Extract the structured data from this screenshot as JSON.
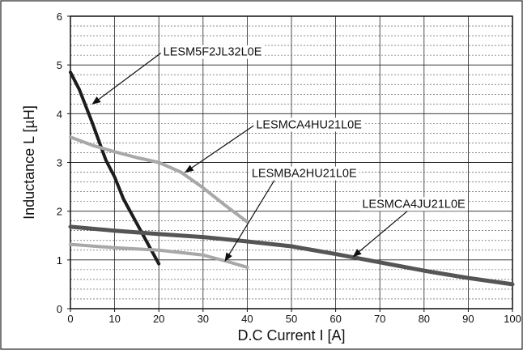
{
  "chart_data": {
    "type": "line",
    "title": "",
    "xlabel": "D.C Current I [A]",
    "ylabel": "Inductance L  [µH]",
    "xlim": [
      0,
      100
    ],
    "ylim": [
      0,
      6
    ],
    "xticks": [
      "0",
      "10",
      "20",
      "30",
      "40",
      "50",
      "60",
      "70",
      "80",
      "90",
      "100"
    ],
    "yticks": [
      "0",
      "1",
      "2",
      "3",
      "4",
      "5",
      "6"
    ],
    "grid": true,
    "series": [
      {
        "name": "LESM5F2JL32L0E",
        "color": "#1c1c1c",
        "x": [
          0,
          2,
          5,
          8,
          10,
          12,
          15,
          18,
          20
        ],
        "y": [
          4.85,
          4.5,
          3.8,
          3.05,
          2.7,
          2.25,
          1.75,
          1.25,
          0.92
        ]
      },
      {
        "name": "LESMCA4HU21L0E",
        "color": "#a8a8a8",
        "x": [
          0,
          5,
          10,
          15,
          20,
          25,
          30,
          35,
          40
        ],
        "y": [
          3.52,
          3.35,
          3.22,
          3.1,
          3.0,
          2.8,
          2.48,
          2.12,
          1.78
        ]
      },
      {
        "name": "LESMBA2HU21L0E",
        "color": "#a8a8a8",
        "x": [
          0,
          10,
          20,
          30,
          35,
          40
        ],
        "y": [
          1.32,
          1.25,
          1.2,
          1.1,
          0.98,
          0.85
        ]
      },
      {
        "name": "LESMCA4JU21L0E",
        "color": "#555555",
        "x": [
          0,
          10,
          20,
          30,
          40,
          50,
          60,
          70,
          80,
          90,
          100
        ],
        "y": [
          1.68,
          1.6,
          1.53,
          1.47,
          1.38,
          1.28,
          1.12,
          0.95,
          0.78,
          0.63,
          0.5
        ]
      }
    ],
    "annotations": [
      {
        "series": 0,
        "text": "LESM5F2JL32L0E",
        "label_at": [
          21,
          5.19
        ],
        "arrow_to": [
          5,
          4.2
        ]
      },
      {
        "series": 1,
        "text": "LESMCA4HU21L0E",
        "label_at": [
          42,
          3.7
        ],
        "arrow_to": [
          26,
          2.8
        ]
      },
      {
        "series": 2,
        "text": "LESMBA2HU21L0E",
        "label_at": [
          41,
          2.7
        ],
        "arrow_to": [
          35,
          0.98
        ]
      },
      {
        "series": 3,
        "text": "LESMCA4JU21L0E",
        "label_at": [
          66,
          2.07
        ],
        "arrow_to": [
          64,
          1.07
        ]
      }
    ]
  }
}
